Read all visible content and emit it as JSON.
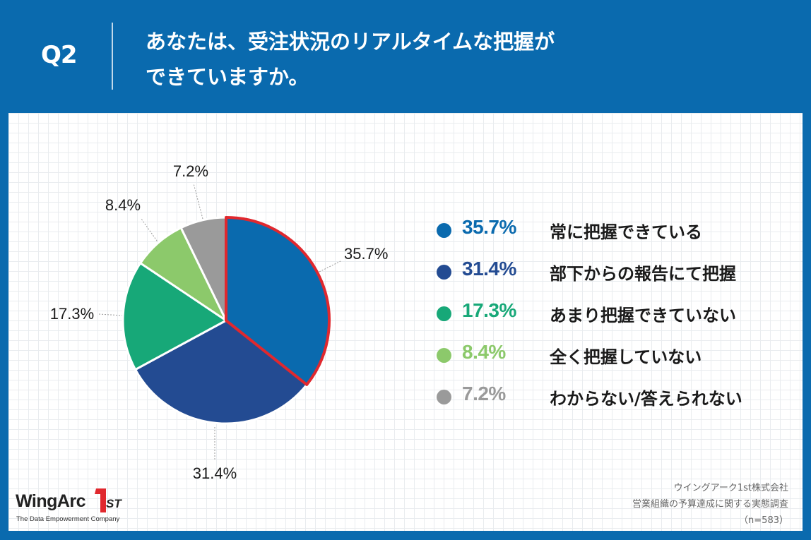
{
  "header": {
    "q_label": "Q2",
    "question_line1": "あなたは、受注状況のリアルタイムな把握が",
    "question_line2": "できていますか。"
  },
  "chart_data": {
    "type": "pie",
    "start_angle_deg": 0,
    "direction": "clockwise",
    "slices": [
      {
        "label": "常に把握できている",
        "value": 35.7,
        "label_text": "35.7%",
        "color": "#0a6aae",
        "highlighted": true
      },
      {
        "label": "部下からの報告にて把握",
        "value": 31.4,
        "label_text": "31.4%",
        "color": "#234b92",
        "highlighted": false
      },
      {
        "label": "あまり把握できていない",
        "value": 17.3,
        "label_text": "17.3%",
        "color": "#17a878",
        "highlighted": false
      },
      {
        "label": "全く把握していない",
        "value": 8.4,
        "label_text": "8.4%",
        "color": "#8cc96b",
        "highlighted": false
      },
      {
        "label": "わからない/答えられない",
        "value": 7.2,
        "label_text": "7.2%",
        "color": "#9a9a9a",
        "highlighted": false
      }
    ],
    "highlight_color": "#e0282e"
  },
  "legend": {
    "items": [
      {
        "pct": "35.7%",
        "text": "常に把握できている",
        "color": "#0a6aae"
      },
      {
        "pct": "31.4%",
        "text": "部下からの報告にて把握",
        "color": "#234b92"
      },
      {
        "pct": "17.3%",
        "text": "あまり把握できていない",
        "color": "#17a878"
      },
      {
        "pct": "8.4%",
        "text": "全く把握していない",
        "color": "#8cc96b"
      },
      {
        "pct": "7.2%",
        "text": "わからない/答えられない",
        "color": "#9a9a9a"
      }
    ]
  },
  "logo": {
    "word": "WingArc",
    "mark": "1",
    "suffix": "ST",
    "tagline": "The Data Empowerment Company"
  },
  "source": {
    "line1": "ウイングアーク1st株式会社",
    "line2": "営業組織の予算達成に関する実態調査",
    "line3": "（n=583）"
  }
}
